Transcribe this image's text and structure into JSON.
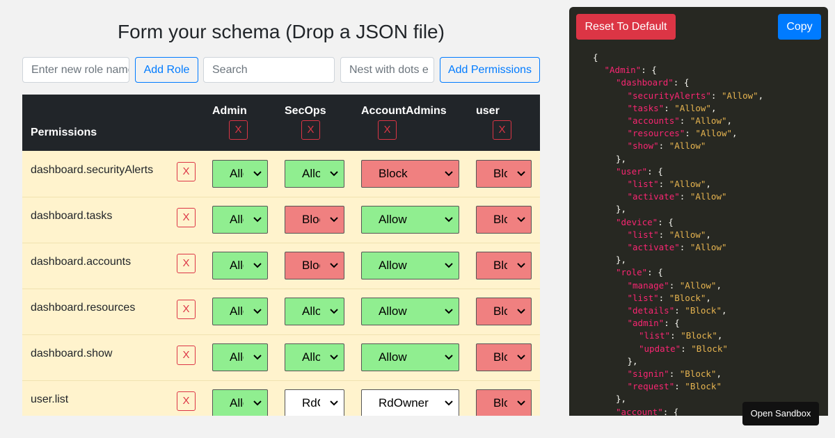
{
  "header": {
    "title": "Form your schema (Drop a JSON file)"
  },
  "toolbar": {
    "role_placeholder": "Enter new role name",
    "add_role": "Add Role",
    "search_placeholder": "Search",
    "permission_placeholder": "Nest with dots e",
    "add_permissions": "Add Permissions"
  },
  "table": {
    "header": "Permissions",
    "roles": [
      "Admin",
      "SecOps",
      "AccountAdmins",
      "user"
    ],
    "remove_label": "X",
    "rows": [
      {
        "permission": "dashboard.securityAlerts",
        "values": [
          "Allow",
          "Allow",
          "Block",
          "Block"
        ]
      },
      {
        "permission": "dashboard.tasks",
        "values": [
          "Allow",
          "Block",
          "Allow",
          "Block"
        ]
      },
      {
        "permission": "dashboard.accounts",
        "values": [
          "Allow",
          "Block",
          "Allow",
          "Block"
        ]
      },
      {
        "permission": "dashboard.resources",
        "values": [
          "Allow",
          "Allow",
          "Allow",
          "Block"
        ]
      },
      {
        "permission": "dashboard.show",
        "values": [
          "Allow",
          "Allow",
          "Allow",
          "Block"
        ]
      },
      {
        "permission": "user.list",
        "values": [
          "Allow",
          "RdOwner",
          "RdOwner",
          "Block"
        ]
      }
    ]
  },
  "option_colors": {
    "Allow": "#90ee90",
    "Block": "#f08080"
  },
  "json_panel": {
    "reset": "Reset To Default",
    "copy": "Copy",
    "lines": [
      [
        "{"
      ],
      [
        "\"Admin\"",
        ": {"
      ],
      [
        "\"dashboard\"",
        ": {"
      ],
      [
        "\"securityAlerts\"",
        ": ",
        "\"Allow\"",
        ","
      ],
      [
        "\"tasks\"",
        ": ",
        "\"Allow\"",
        ","
      ],
      [
        "\"accounts\"",
        ": ",
        "\"Allow\"",
        ","
      ],
      [
        "\"resources\"",
        ": ",
        "\"Allow\"",
        ","
      ],
      [
        "\"show\"",
        ": ",
        "\"Allow\""
      ],
      [
        "},"
      ],
      [
        "\"user\"",
        ": {"
      ],
      [
        "\"list\"",
        ": ",
        "\"Allow\"",
        ","
      ],
      [
        "\"activate\"",
        ": ",
        "\"Allow\""
      ],
      [
        "},"
      ],
      [
        "\"device\"",
        ": {"
      ],
      [
        "\"list\"",
        ": ",
        "\"Allow\"",
        ","
      ],
      [
        "\"activate\"",
        ": ",
        "\"Allow\""
      ],
      [
        "},"
      ],
      [
        "\"role\"",
        ": {"
      ],
      [
        "\"manage\"",
        ": ",
        "\"Allow\"",
        ","
      ],
      [
        "\"list\"",
        ": ",
        "\"Block\"",
        ","
      ],
      [
        "\"details\"",
        ": ",
        "\"Block\"",
        ","
      ],
      [
        "\"admin\"",
        ": {"
      ],
      [
        "\"list\"",
        ": ",
        "\"Block\"",
        ","
      ],
      [
        "\"update\"",
        ": ",
        "\"Block\""
      ],
      [
        "},"
      ],
      [
        "\"signin\"",
        ": ",
        "\"Block\"",
        ","
      ],
      [
        "\"request\"",
        ": ",
        "\"Block\""
      ],
      [
        "},"
      ],
      [
        "\"account\"",
        ": {"
      ]
    ]
  },
  "sandbox_button": "Open Sandbox"
}
